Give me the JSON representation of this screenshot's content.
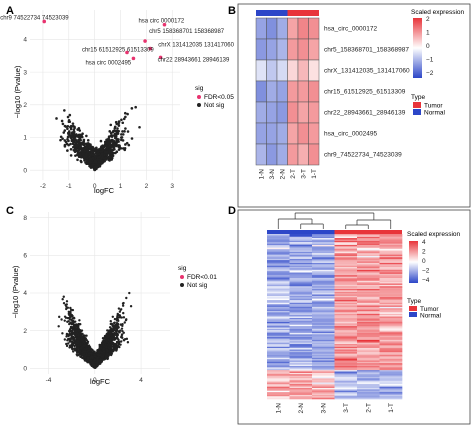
{
  "colors": {
    "sig_pink": "#e8336f",
    "not_sig": "#222222",
    "tumor": "#e8343a",
    "normal": "#2c46c8",
    "high": "#e8343a",
    "mid": "#ffffff",
    "low": "#2c46c8",
    "grid": "#e6e6e6"
  },
  "chart_data": [
    {
      "panel": "A",
      "type": "scatter",
      "xlabel": "logFC",
      "ylabel": "−log10 (Pvalue)",
      "xlim": [
        -2.5,
        3.3
      ],
      "ylim": [
        -0.3,
        4.9
      ],
      "xticks": [
        -2,
        -1,
        0,
        1,
        2,
        3
      ],
      "yticks": [
        0,
        1,
        2,
        3,
        4
      ],
      "grid": true,
      "legend": {
        "title": "sig",
        "entries": [
          "FDR<0.05",
          "Not sig"
        ],
        "position": "right"
      },
      "highlighted": [
        {
          "label": "chr9_74522734_74523039",
          "x": -1.95,
          "y": 4.55
        },
        {
          "label": "hsa_circ_0000172",
          "x": 2.7,
          "y": 4.45
        },
        {
          "label": "chr5_158368701_158368987",
          "x": 1.95,
          "y": 3.95
        },
        {
          "label": "chrX_131412035_131417060",
          "x": 2.15,
          "y": 3.72
        },
        {
          "label": "chr15_61512925_61513309",
          "x": 1.25,
          "y": 3.6
        },
        {
          "label": "hsa_circ_0002495",
          "x": 1.5,
          "y": 3.42
        },
        {
          "label": "chr22_28943661_28946139",
          "x": 2.55,
          "y": 3.45
        }
      ]
    },
    {
      "panel": "B",
      "type": "heatmap",
      "columns": [
        "1-N",
        "3-N",
        "2-N",
        "2-T",
        "3-T",
        "1-T"
      ],
      "column_type": [
        "Normal",
        "Normal",
        "Normal",
        "Tumor",
        "Tumor",
        "Tumor"
      ],
      "rows": [
        "hsa_circ_0000172",
        "chr5_158368701_158368987",
        "chrX_131412035_131417060",
        "chr15_61512925_61513309",
        "chr22_28943661_28946139",
        "hsa_circ_0002495",
        "chr9_74522734_74523039"
      ],
      "values": [
        [
          -1.0,
          -1.2,
          -0.9,
          0.9,
          1.2,
          1.1
        ],
        [
          -1.1,
          -1.0,
          -0.8,
          1.0,
          1.1,
          0.9
        ],
        [
          -0.3,
          -0.6,
          -0.4,
          0.4,
          0.7,
          0.3
        ],
        [
          -1.2,
          -0.9,
          -1.0,
          1.0,
          1.0,
          1.1
        ],
        [
          -0.9,
          -1.0,
          -1.1,
          1.1,
          0.9,
          1.0
        ],
        [
          -1.0,
          -1.0,
          -0.9,
          0.9,
          1.1,
          1.0
        ],
        [
          -0.8,
          -1.1,
          -0.9,
          1.0,
          0.8,
          1.1
        ]
      ],
      "legend_title": "Scaled expression",
      "scale_ticks": [
        2,
        1,
        0,
        -1,
        -2
      ],
      "type_title": "Type",
      "type_entries": [
        "Tumor",
        "Normal"
      ]
    },
    {
      "panel": "C",
      "type": "scatter",
      "xlabel": "logFC",
      "ylabel": "−log10 (Pvalue)",
      "xlim": [
        -5.6,
        6.5
      ],
      "ylim": [
        -0.3,
        8.3
      ],
      "xticks": [
        -4,
        0,
        4
      ],
      "yticks": [
        0,
        2,
        4,
        6,
        8
      ],
      "grid": true,
      "legend": {
        "title": "sig",
        "entries": [
          "FDR<0.01",
          "Not sig"
        ],
        "position": "right"
      }
    },
    {
      "panel": "D",
      "type": "heatmap",
      "columns": [
        "1-N",
        "2-N",
        "3-N",
        "3-T",
        "2-T",
        "1-T"
      ],
      "column_type": [
        "Normal",
        "Normal",
        "Normal",
        "Tumor",
        "Tumor",
        "Tumor"
      ],
      "legend_title": "Scaled expression",
      "scale_ticks": [
        4,
        2,
        0,
        -2,
        -4
      ],
      "type_title": "Type",
      "type_entries": [
        "Tumor",
        "Normal"
      ]
    }
  ],
  "panel_labels": [
    "A",
    "B",
    "C",
    "D"
  ]
}
